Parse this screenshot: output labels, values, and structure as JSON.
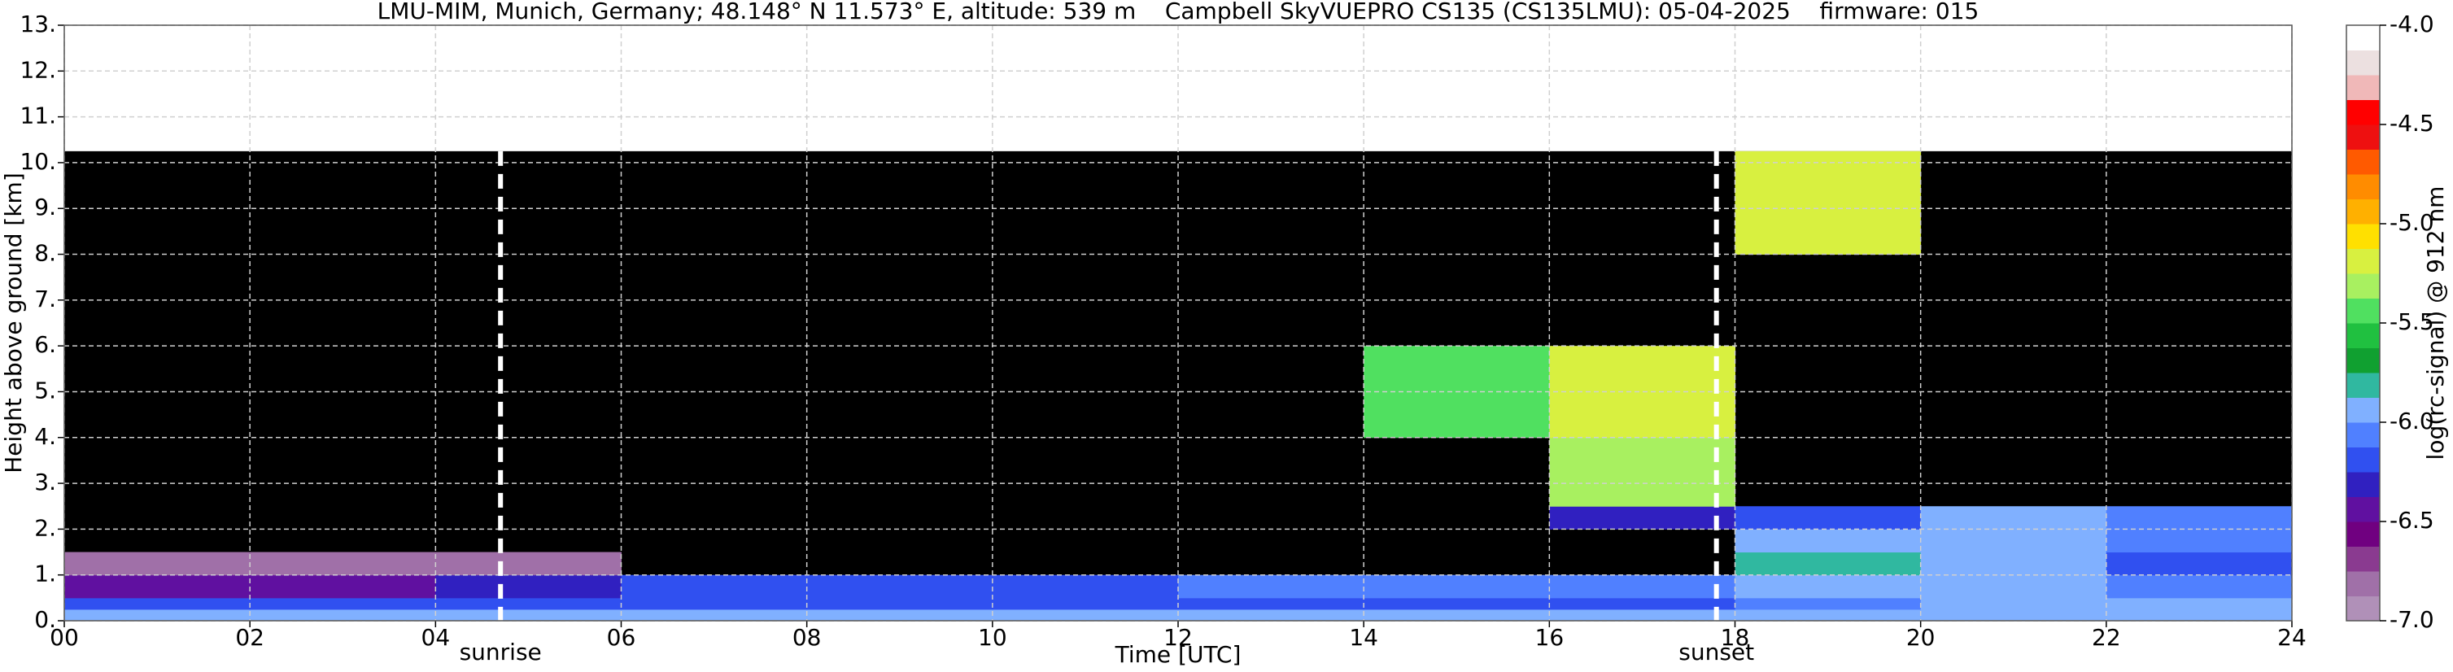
{
  "chart_data": {
    "type": "heatmap",
    "title": "LMU-MIM, Munich, Germany; 48.148° N 11.573° E, altitude: 539 m    Campbell SkyVUEPRO CS135 (CS135LMU): 05-04-2025    firmware: 015",
    "x_label": "Time [UTC]",
    "y_label": "Height above ground [km]",
    "colorbar_label": "log(rc-signal) @ 912 nm",
    "x_edges": [
      0,
      2,
      4,
      6,
      8,
      10,
      12,
      14,
      16,
      18,
      20,
      22,
      24
    ],
    "y_edges": [
      0,
      0.25,
      0.5,
      1,
      1.5,
      2,
      2.5,
      4,
      6,
      8,
      10.25
    ],
    "values": [
      [
        -5.9,
        -5.9,
        -5.9,
        -5.9,
        -5.9,
        -5.9,
        -5.9,
        -5.9,
        -5.9,
        -5.9,
        -5.9,
        -5.9
      ],
      [
        -6.2,
        -6.2,
        -6.2,
        -6.2,
        -6.2,
        -6.2,
        -6.2,
        -6.2,
        -6.2,
        -6.1,
        -6.0,
        -6.0
      ],
      [
        -6.4,
        -6.4,
        -6.3,
        -6.2,
        -6.2,
        -6.2,
        -6.1,
        -6.1,
        -6.1,
        -6.0,
        -6.0,
        -6.1
      ],
      [
        -6.8,
        -6.8,
        -6.8,
        null,
        null,
        null,
        null,
        null,
        null,
        -5.8,
        -5.9,
        -6.2
      ],
      [
        null,
        null,
        null,
        null,
        null,
        null,
        null,
        null,
        null,
        -5.9,
        -6.0,
        -6.1
      ],
      [
        null,
        null,
        null,
        null,
        null,
        null,
        null,
        null,
        -6.3,
        -6.2,
        -6.0,
        -6.1
      ],
      [
        null,
        null,
        null,
        null,
        null,
        null,
        null,
        null,
        -5.3,
        null,
        null,
        null
      ],
      [
        null,
        null,
        null,
        null,
        null,
        null,
        null,
        -5.5,
        -5.2,
        null,
        null,
        null
      ],
      [
        null,
        null,
        null,
        null,
        null,
        null,
        null,
        null,
        null,
        null,
        null,
        null
      ],
      [
        null,
        null,
        null,
        null,
        null,
        null,
        null,
        null,
        null,
        -5.2,
        null,
        null
      ]
    ],
    "xlim": [
      0,
      24
    ],
    "xticks": [
      {
        "value": 0,
        "label": "00"
      },
      {
        "value": 2,
        "label": "02"
      },
      {
        "value": 4,
        "label": "04"
      },
      {
        "value": 6,
        "label": "06"
      },
      {
        "value": 8,
        "label": "08"
      },
      {
        "value": 10,
        "label": "10"
      },
      {
        "value": 12,
        "label": "12"
      },
      {
        "value": 14,
        "label": "14"
      },
      {
        "value": 16,
        "label": "16"
      },
      {
        "value": 18,
        "label": "18"
      },
      {
        "value": 20,
        "label": "20"
      },
      {
        "value": 22,
        "label": "22"
      },
      {
        "value": 24,
        "label": "24"
      }
    ],
    "ylim": [
      0,
      13
    ],
    "yticks": [
      {
        "value": 0,
        "label": "0."
      },
      {
        "value": 1,
        "label": "1."
      },
      {
        "value": 2,
        "label": "2."
      },
      {
        "value": 3,
        "label": "3."
      },
      {
        "value": 4,
        "label": "4."
      },
      {
        "value": 5,
        "label": "5."
      },
      {
        "value": 6,
        "label": "6."
      },
      {
        "value": 7,
        "label": "7."
      },
      {
        "value": 8,
        "label": "8."
      },
      {
        "value": 9,
        "label": "9."
      },
      {
        "value": 10,
        "label": "10."
      },
      {
        "value": 11,
        "label": "11."
      },
      {
        "value": 12,
        "label": "12."
      },
      {
        "value": 13,
        "label": "13."
      }
    ],
    "clim": [
      -7,
      -4
    ],
    "cticks": [
      {
        "value": -4,
        "label": "-4.0"
      },
      -4.5,
      {
        "value": -5,
        "label": "-5.0"
      },
      -5.5,
      {
        "value": -6,
        "label": "-6.0"
      },
      -6.5,
      {
        "value": -7,
        "label": "-7.0"
      }
    ],
    "colormap": [
      "#b090b8",
      "#a070a8",
      "#8a3a90",
      "#700080",
      "#6010a0",
      "#3020c0",
      "#3050f0",
      "#5080ff",
      "#80b0ff",
      "#30b8a0",
      "#10a030",
      "#20c040",
      "#50e060",
      "#a8f060",
      "#d8f040",
      "#ffe000",
      "#ffb000",
      "#ff8c00",
      "#ff5a00",
      "#ee1010",
      "#ff0000",
      "#f0b8b8",
      "#ece0e0",
      "#ffffff"
    ],
    "missing_color": "#000000",
    "grid": true,
    "annotations": [
      {
        "x": 4.7,
        "label": "sunrise"
      },
      {
        "x": 17.8,
        "label": "sunset"
      }
    ]
  }
}
